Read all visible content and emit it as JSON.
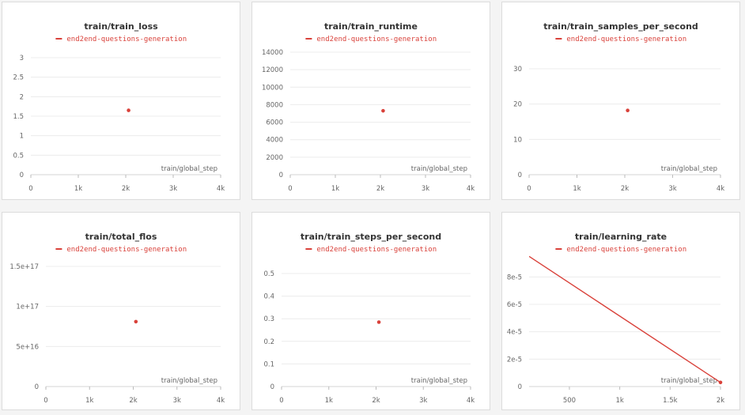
{
  "accent_color": "#d9413a",
  "legend_label": "end2end-questions-generation",
  "chart_data": [
    {
      "type": "scatter",
      "title": "train/train_loss",
      "xlabel": "train/global_step",
      "xlim": [
        0,
        4000
      ],
      "xticks": [
        0,
        1000,
        2000,
        3000,
        4000
      ],
      "xtick_labels": [
        "0",
        "1k",
        "2k",
        "3k",
        "4k"
      ],
      "ylim": [
        0,
        3
      ],
      "yticks": [
        0,
        0.5,
        1,
        1.5,
        2,
        2.5,
        3
      ],
      "ytick_labels": [
        "0",
        "0.5",
        "1",
        "1.5",
        "2",
        "2.5",
        "3"
      ],
      "series": [
        {
          "name": "end2end-questions-generation",
          "x": [
            2060
          ],
          "y": [
            1.65
          ]
        }
      ]
    },
    {
      "type": "scatter",
      "title": "train/train_runtime",
      "xlabel": "train/global_step",
      "xlim": [
        0,
        4000
      ],
      "xticks": [
        0,
        1000,
        2000,
        3000,
        4000
      ],
      "xtick_labels": [
        "0",
        "1k",
        "2k",
        "3k",
        "4k"
      ],
      "ylim": [
        0,
        14000
      ],
      "yticks": [
        0,
        2000,
        4000,
        6000,
        8000,
        10000,
        12000,
        14000
      ],
      "ytick_labels": [
        "0",
        "2000",
        "4000",
        "6000",
        "8000",
        "10000",
        "12000",
        "14000"
      ],
      "series": [
        {
          "name": "end2end-questions-generation",
          "x": [
            2060
          ],
          "y": [
            7300
          ]
        }
      ]
    },
    {
      "type": "scatter",
      "title": "train/train_samples_per_second",
      "xlabel": "train/global_step",
      "xlim": [
        0,
        4000
      ],
      "xticks": [
        0,
        1000,
        2000,
        3000,
        4000
      ],
      "xtick_labels": [
        "0",
        "1k",
        "2k",
        "3k",
        "4k"
      ],
      "ylim": [
        0,
        30
      ],
      "yticks": [
        0,
        10,
        20,
        30
      ],
      "ytick_labels": [
        "0",
        "10",
        "20",
        "30"
      ],
      "series": [
        {
          "name": "end2end-questions-generation",
          "x": [
            2060
          ],
          "y": [
            18.2
          ]
        }
      ]
    },
    {
      "type": "scatter",
      "title": "train/total_flos",
      "xlabel": "train/global_step",
      "xlim": [
        0,
        4000
      ],
      "xticks": [
        0,
        1000,
        2000,
        3000,
        4000
      ],
      "xtick_labels": [
        "0",
        "1k",
        "2k",
        "3k",
        "4k"
      ],
      "ylim": [
        0,
        1.5e+17
      ],
      "yticks": [
        0,
        5e+16,
        1e+17,
        1.5e+17
      ],
      "ytick_labels": [
        "0",
        "5e+16",
        "1e+17",
        "1.5e+17"
      ],
      "series": [
        {
          "name": "end2end-questions-generation",
          "x": [
            2060
          ],
          "y": [
            8.1e+16
          ]
        }
      ]
    },
    {
      "type": "scatter",
      "title": "train/train_steps_per_second",
      "xlabel": "train/global_step",
      "xlim": [
        0,
        4000
      ],
      "xticks": [
        0,
        1000,
        2000,
        3000,
        4000
      ],
      "xtick_labels": [
        "0",
        "1k",
        "2k",
        "3k",
        "4k"
      ],
      "ylim": [
        0,
        0.5
      ],
      "yticks": [
        0,
        0.1,
        0.2,
        0.3,
        0.4,
        0.5
      ],
      "ytick_labels": [
        "0",
        "0.1",
        "0.2",
        "0.3",
        "0.4",
        "0.5"
      ],
      "series": [
        {
          "name": "end2end-questions-generation",
          "x": [
            2060
          ],
          "y": [
            0.285
          ]
        }
      ]
    },
    {
      "type": "line",
      "title": "train/learning_rate",
      "xlabel": "train/global_step",
      "xlim": [
        100,
        2000
      ],
      "xticks": [
        500,
        1000,
        1500,
        2000
      ],
      "xtick_labels": [
        "500",
        "1k",
        "1.5k",
        "2k"
      ],
      "ylim": [
        0,
        9e-05
      ],
      "yticks": [
        0,
        2e-05,
        4e-05,
        6e-05,
        8e-05
      ],
      "ytick_labels": [
        "0",
        "2e-5",
        "4e-5",
        "6e-5",
        "8e-5"
      ],
      "series": [
        {
          "name": "end2end-questions-generation",
          "x": [
            100,
            2000
          ],
          "y": [
            9.5e-05,
            3e-06
          ],
          "end_marker": true
        }
      ]
    }
  ]
}
